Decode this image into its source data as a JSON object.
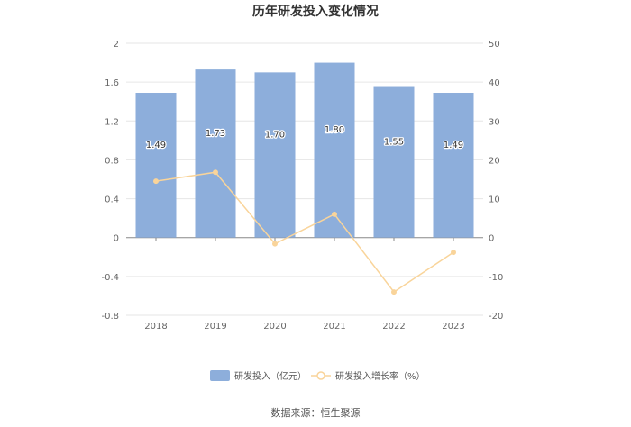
{
  "title": "历年研发投入变化情况",
  "source": "数据来源：恒生聚源",
  "chart_data": {
    "type": "bar",
    "title": "历年研发投入变化情况",
    "categories": [
      "2018",
      "2019",
      "2020",
      "2021",
      "2022",
      "2023"
    ],
    "series": [
      {
        "name": "研发投入（亿元）",
        "type": "bar",
        "axis": "left",
        "color": "#8DAEDB",
        "values": [
          1.49,
          1.73,
          1.7,
          1.8,
          1.55,
          1.49
        ],
        "labels": [
          "1.49",
          "1.73",
          "1.70",
          "1.80",
          "1.55",
          "1.49"
        ]
      },
      {
        "name": "研发投入增长率（%）",
        "type": "line",
        "axis": "right",
        "color": "#F9D49A",
        "values": [
          14.5,
          16.8,
          -1.6,
          6.0,
          -14.0,
          -3.8
        ]
      }
    ],
    "y_left": {
      "min": -0.8,
      "max": 2,
      "ticks": [
        "2",
        "1.6",
        "1.2",
        "0.8",
        "0.4",
        "0",
        "-0.4",
        "-0.8"
      ]
    },
    "y_right": {
      "min": -20,
      "max": 50,
      "ticks": [
        "50",
        "40",
        "30",
        "20",
        "10",
        "0",
        "-10",
        "-20"
      ]
    },
    "grid": true,
    "legend": "bottom"
  }
}
